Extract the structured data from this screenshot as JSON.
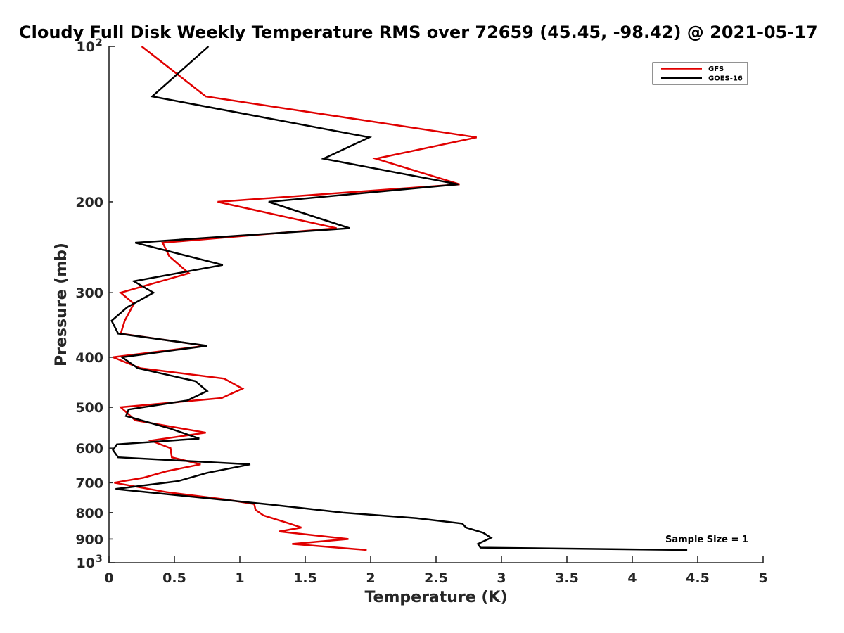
{
  "chart_data": {
    "type": "line",
    "title": "Cloudy Full Disk Weekly Temperature RMS over 72659 (45.45, -98.42) @ 2021-05-17",
    "xlabel": "Temperature (K)",
    "ylabel": "Pressure (mb)",
    "xlim": [
      0,
      5
    ],
    "ylim": [
      100,
      1000
    ],
    "y_scale": "log",
    "y_reversed": true,
    "x_ticks": [
      "0",
      "0.5",
      "1",
      "1.5",
      "2",
      "2.5",
      "3",
      "3.5",
      "4",
      "4.5",
      "5"
    ],
    "x_tick_values": [
      0,
      0.5,
      1,
      1.5,
      2,
      2.5,
      3,
      3.5,
      4,
      4.5,
      5
    ],
    "y_tick_values": [
      200,
      300,
      400,
      500,
      600,
      700,
      800,
      900
    ],
    "y_tick_labels": [
      "200",
      "300",
      "400",
      "500",
      "600",
      "700",
      "800",
      "900"
    ],
    "y_min_label": {
      "base": "10",
      "exp": "2"
    },
    "y_max_label": {
      "base": "10",
      "exp": "3"
    },
    "grid": false,
    "legend_position": "top-right",
    "series": [
      {
        "name": "GFS",
        "color": "#e00000",
        "points": [
          [
            0.25,
            100
          ],
          [
            0.74,
            125
          ],
          [
            2.81,
            150
          ],
          [
            2.04,
            165
          ],
          [
            2.68,
            185
          ],
          [
            0.83,
            200
          ],
          [
            1.74,
            225
          ],
          [
            0.41,
            240
          ],
          [
            0.46,
            255
          ],
          [
            0.61,
            275
          ],
          [
            0.09,
            300
          ],
          [
            0.19,
            315
          ],
          [
            0.12,
            340
          ],
          [
            0.09,
            360
          ],
          [
            0.74,
            380
          ],
          [
            0.03,
            400
          ],
          [
            0.24,
            420
          ],
          [
            0.88,
            440
          ],
          [
            1.02,
            460
          ],
          [
            0.86,
            480
          ],
          [
            0.09,
            500
          ],
          [
            0.2,
            530
          ],
          [
            0.74,
            560
          ],
          [
            0.32,
            580
          ],
          [
            0.47,
            600
          ],
          [
            0.48,
            625
          ],
          [
            0.7,
            645
          ],
          [
            0.44,
            665
          ],
          [
            0.26,
            685
          ],
          [
            0.04,
            700
          ],
          [
            0.44,
            730
          ],
          [
            0.9,
            755
          ],
          [
            1.11,
            770
          ],
          [
            1.12,
            790
          ],
          [
            1.18,
            810
          ],
          [
            1.38,
            840
          ],
          [
            1.47,
            855
          ],
          [
            1.3,
            870
          ],
          [
            1.83,
            900
          ],
          [
            1.4,
            920
          ],
          [
            1.97,
            945
          ]
        ]
      },
      {
        "name": "GOES-16",
        "color": "#000000",
        "points": [
          [
            0.76,
            100
          ],
          [
            0.33,
            125
          ],
          [
            1.99,
            150
          ],
          [
            1.64,
            165
          ],
          [
            2.67,
            185
          ],
          [
            1.22,
            200
          ],
          [
            1.84,
            225
          ],
          [
            0.2,
            240
          ],
          [
            0.87,
            265
          ],
          [
            0.19,
            285
          ],
          [
            0.34,
            300
          ],
          [
            0.14,
            320
          ],
          [
            0.02,
            340
          ],
          [
            0.07,
            360
          ],
          [
            0.75,
            380
          ],
          [
            0.1,
            400
          ],
          [
            0.22,
            420
          ],
          [
            0.66,
            445
          ],
          [
            0.75,
            465
          ],
          [
            0.6,
            485
          ],
          [
            0.15,
            505
          ],
          [
            0.13,
            520
          ],
          [
            0.47,
            550
          ],
          [
            0.69,
            575
          ],
          [
            0.06,
            590
          ],
          [
            0.03,
            605
          ],
          [
            0.07,
            625
          ],
          [
            1.08,
            645
          ],
          [
            0.75,
            670
          ],
          [
            0.53,
            695
          ],
          [
            0.05,
            720
          ],
          [
            1.2,
            770
          ],
          [
            1.79,
            800
          ],
          [
            2.35,
            820
          ],
          [
            2.7,
            840
          ],
          [
            2.73,
            855
          ],
          [
            2.86,
            875
          ],
          [
            2.92,
            895
          ],
          [
            2.82,
            920
          ],
          [
            2.84,
            935
          ],
          [
            4.42,
            945
          ]
        ]
      }
    ],
    "annotation": "Sample Size = 1"
  }
}
